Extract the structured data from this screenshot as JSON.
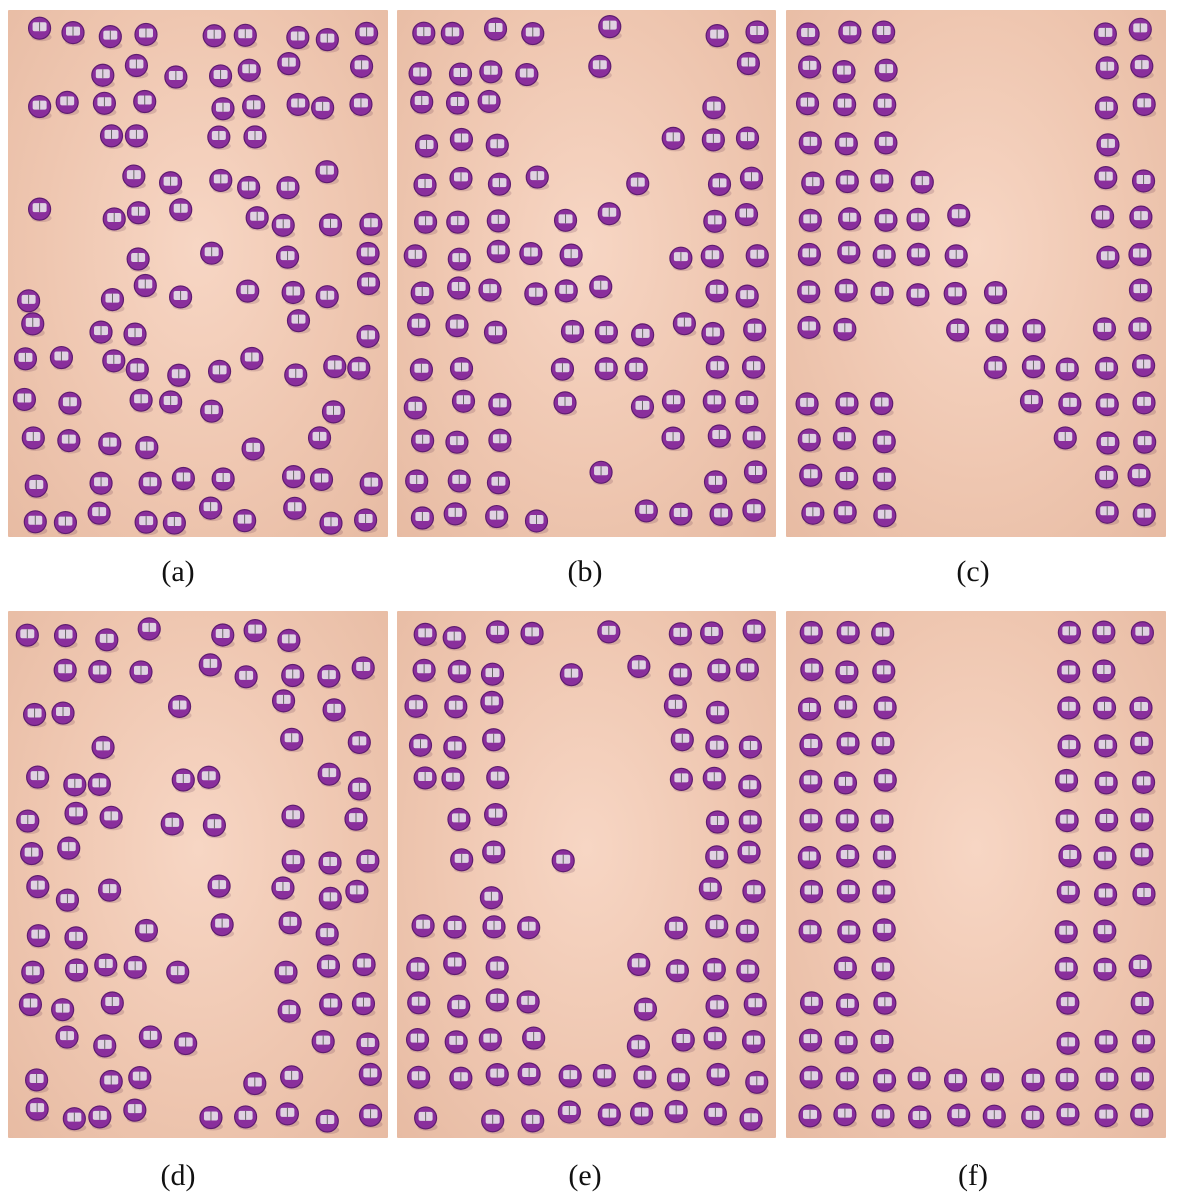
{
  "figure": {
    "panels": [
      {
        "label": "(a)"
      },
      {
        "label": "(b)"
      },
      {
        "label": "(c)"
      },
      {
        "label": "(d)"
      },
      {
        "label": "(e)"
      },
      {
        "label": "(f)"
      }
    ]
  },
  "colors": {
    "floor": "#efc7b1",
    "robot_body": "#8a2f9c",
    "robot_body_dark": "#5e1c70",
    "robot_board": "#e9e4ea",
    "caption_text": "#111111"
  },
  "icons": {
    "robot": "kilobot-robot-icon"
  }
}
